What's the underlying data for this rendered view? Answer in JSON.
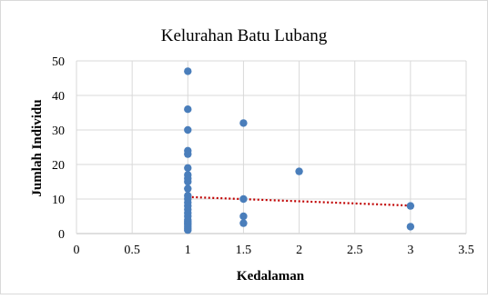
{
  "chart_data": {
    "type": "scatter",
    "title": "Kelurahan Batu Lubang",
    "xlabel": "Kedalaman",
    "ylabel": "Jumlah Individu",
    "xlim": [
      0,
      3.5
    ],
    "ylim": [
      0,
      50
    ],
    "xticks": [
      0,
      0.5,
      1,
      1.5,
      2,
      2.5,
      3,
      3.5
    ],
    "yticks": [
      0,
      10,
      20,
      30,
      40,
      50
    ],
    "xtick_labels": [
      "0",
      "0.5",
      "1",
      "1.5",
      "2",
      "2.5",
      "3",
      "3.5"
    ],
    "ytick_labels": [
      "0",
      "10",
      "20",
      "30",
      "40",
      "50"
    ],
    "grid": true,
    "legend": "none",
    "marker_color": "#4a7ebb",
    "trendline": {
      "type": "linear",
      "style": "dotted",
      "color": "#c00000",
      "x": [
        1,
        3
      ],
      "y": [
        10.6,
        8.1
      ]
    },
    "points": {
      "x": [
        1,
        1,
        1,
        1,
        1,
        1,
        1,
        1,
        1,
        1,
        1,
        1,
        1,
        1,
        1,
        1,
        1,
        1,
        1,
        1,
        1,
        1,
        1,
        1,
        1.5,
        1.5,
        1.5,
        1.5,
        2,
        3,
        3
      ],
      "y": [
        47,
        36,
        30,
        24,
        23,
        19,
        17,
        16,
        15,
        13,
        11,
        10,
        9,
        8,
        7,
        6,
        5,
        4,
        3.5,
        3,
        2.5,
        2,
        1.5,
        1,
        32,
        10,
        5,
        3,
        18,
        8,
        2
      ]
    }
  }
}
